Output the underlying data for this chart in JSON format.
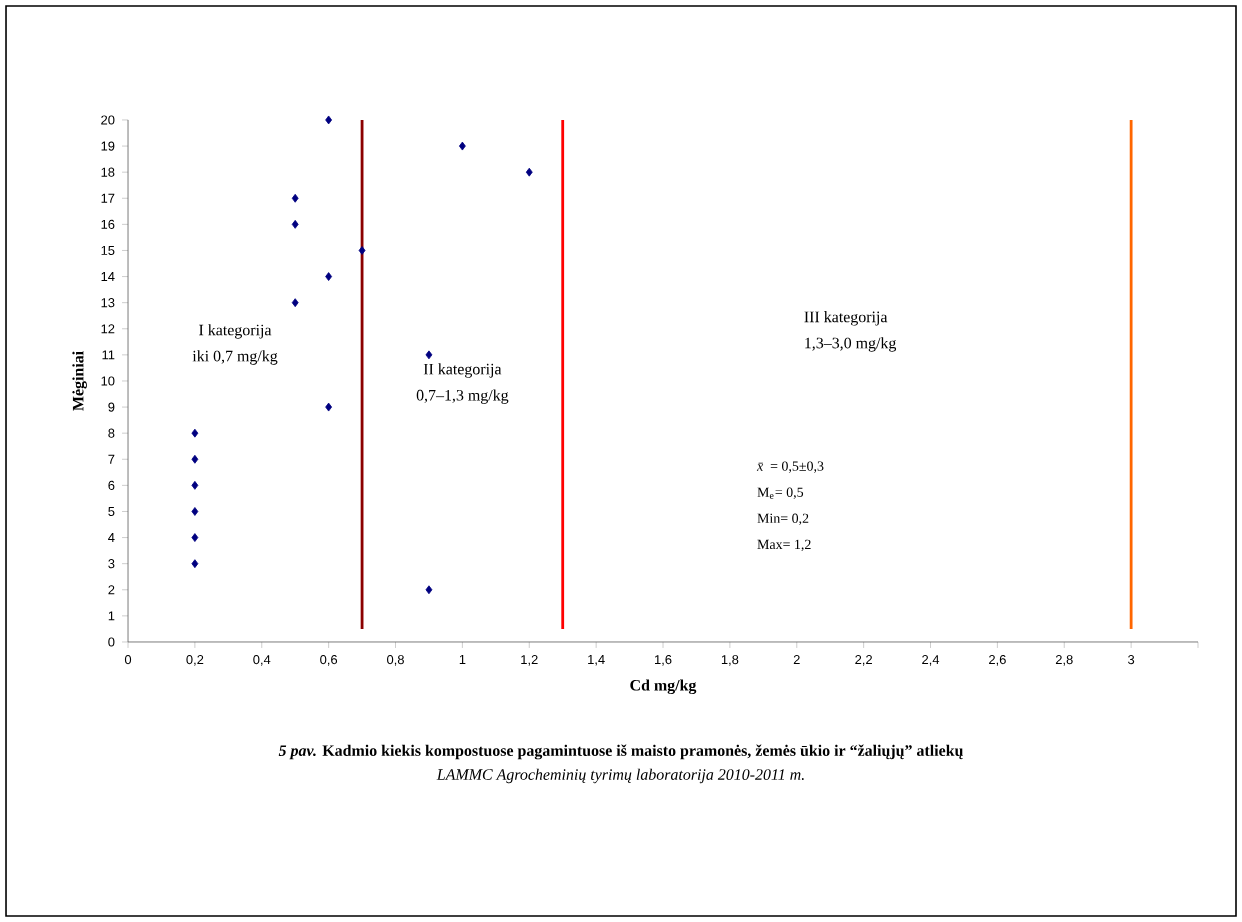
{
  "chart_data": {
    "type": "scatter",
    "title": "*5 pav.* Kadmio kiekis kompostuose pagamintuose iš maisto pramonės, žemės ūkio ir “žaliųjų” atliekų",
    "subtitle": "LAMMC Agrocheminių tyrimų laboratorija 2010-2011 m.",
    "xlabel": "Cd mg/kg",
    "ylabel": "Mėginiai",
    "series": [
      {
        "color": "#000080",
        "x": [
          0.9,
          0.2,
          0.2,
          0.2,
          0.2,
          0.2,
          0.2,
          0.6,
          0.9,
          0.5,
          0.6,
          0.7,
          0.5,
          0.5,
          1.2,
          1.0,
          0.6
        ],
        "values": [
          2,
          3,
          4,
          5,
          6,
          7,
          8,
          9,
          11,
          13,
          14,
          15,
          16,
          17,
          18,
          19,
          20
        ]
      }
    ],
    "marker": "diamond",
    "xlim": [
      0,
      3.2
    ],
    "ylim": [
      0,
      20
    ],
    "xticks": [
      0,
      {
        "value": 0.2,
        "label": "0,2"
      },
      {
        "value": 0.4,
        "label": "0,4"
      },
      {
        "value": 0.6,
        "label": "0,6"
      },
      {
        "value": 0.8,
        "label": "0,8"
      },
      1,
      {
        "value": 1.2,
        "label": "1,2"
      },
      {
        "value": 1.4,
        "label": "1,4"
      },
      {
        "value": 1.6,
        "label": "1,6"
      },
      {
        "value": 1.8,
        "label": "1,8"
      },
      2,
      {
        "value": 2.2,
        "label": "2,2"
      },
      {
        "value": 2.4,
        "label": "2,4"
      },
      {
        "value": 2.6,
        "label": "2,6"
      },
      {
        "value": 2.8,
        "label": "2,8"
      },
      3,
      {
        "value": 3.2,
        "label": null
      }
    ],
    "yticks": [
      0,
      1,
      2,
      3,
      4,
      5,
      6,
      7,
      8,
      9,
      10,
      11,
      12,
      13,
      14,
      15,
      16,
      17,
      18,
      19,
      20
    ],
    "ref_lines": [
      {
        "axis": "x",
        "value": 0.7,
        "color": "#8b0000"
      },
      {
        "axis": "x",
        "value": 1.3,
        "color": "#ff0000"
      },
      {
        "axis": "x",
        "value": 3.0,
        "color": "#ff6600"
      }
    ],
    "annotations": [
      "I kategorija",
      "iki 0,7 mg/kg",
      "II kategorija",
      "0,7–1,3 mg/kg",
      "III kategorija",
      "1,3–3,0 mg/kg",
      "*x̄* = 0,5±0,3",
      "M$_{e}$= 0,5",
      "Min= 0,2",
      "Max= 1,2"
    ]
  }
}
